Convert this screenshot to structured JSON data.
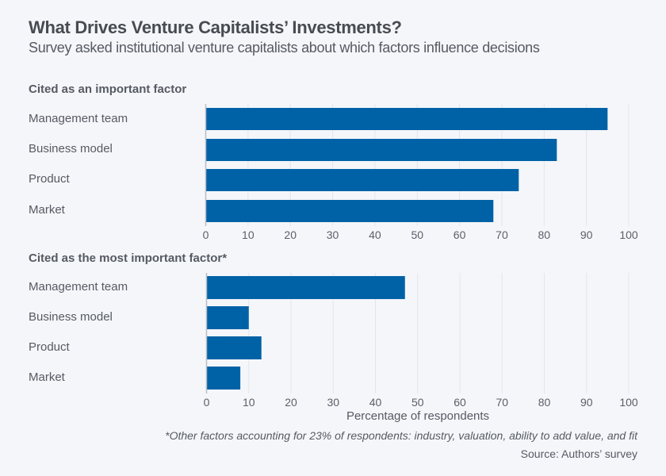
{
  "header": {
    "title": "What Drives Venture Capitalists’ Investments?",
    "subtitle": "Survey asked institutional venture capitalists about which factors influence decisions"
  },
  "colors": {
    "bar": "#0062a6",
    "grid": "#e2e5ec",
    "axis": "#b8bcc4",
    "background": "#f5f6fa"
  },
  "chart_data": [
    {
      "type": "bar",
      "orientation": "horizontal",
      "title": "Cited as an important factor",
      "categories": [
        "Management team",
        "Business model",
        "Product",
        "Market"
      ],
      "values": [
        95,
        83,
        74,
        68
      ],
      "xlim": [
        0,
        100
      ],
      "xticks": [
        "0",
        "10",
        "20",
        "30",
        "40",
        "50",
        "60",
        "70",
        "80",
        "90",
        "100"
      ],
      "xlabel": "",
      "grid": true
    },
    {
      "type": "bar",
      "orientation": "horizontal",
      "title": "Cited as the most important factor*",
      "categories": [
        "Management team",
        "Business model",
        "Product",
        "Market"
      ],
      "values": [
        47,
        10,
        13,
        8
      ],
      "xlim": [
        0,
        100
      ],
      "xticks": [
        "0",
        "10",
        "20",
        "30",
        "40",
        "50",
        "60",
        "70",
        "80",
        "90",
        "100"
      ],
      "xlabel": "Percentage of respondents",
      "grid": true
    }
  ],
  "footer": {
    "note": "*Other factors accounting for 23% of respondents: industry, valuation, ability to add value, and fit",
    "source": "Source: Authors’ survey"
  }
}
